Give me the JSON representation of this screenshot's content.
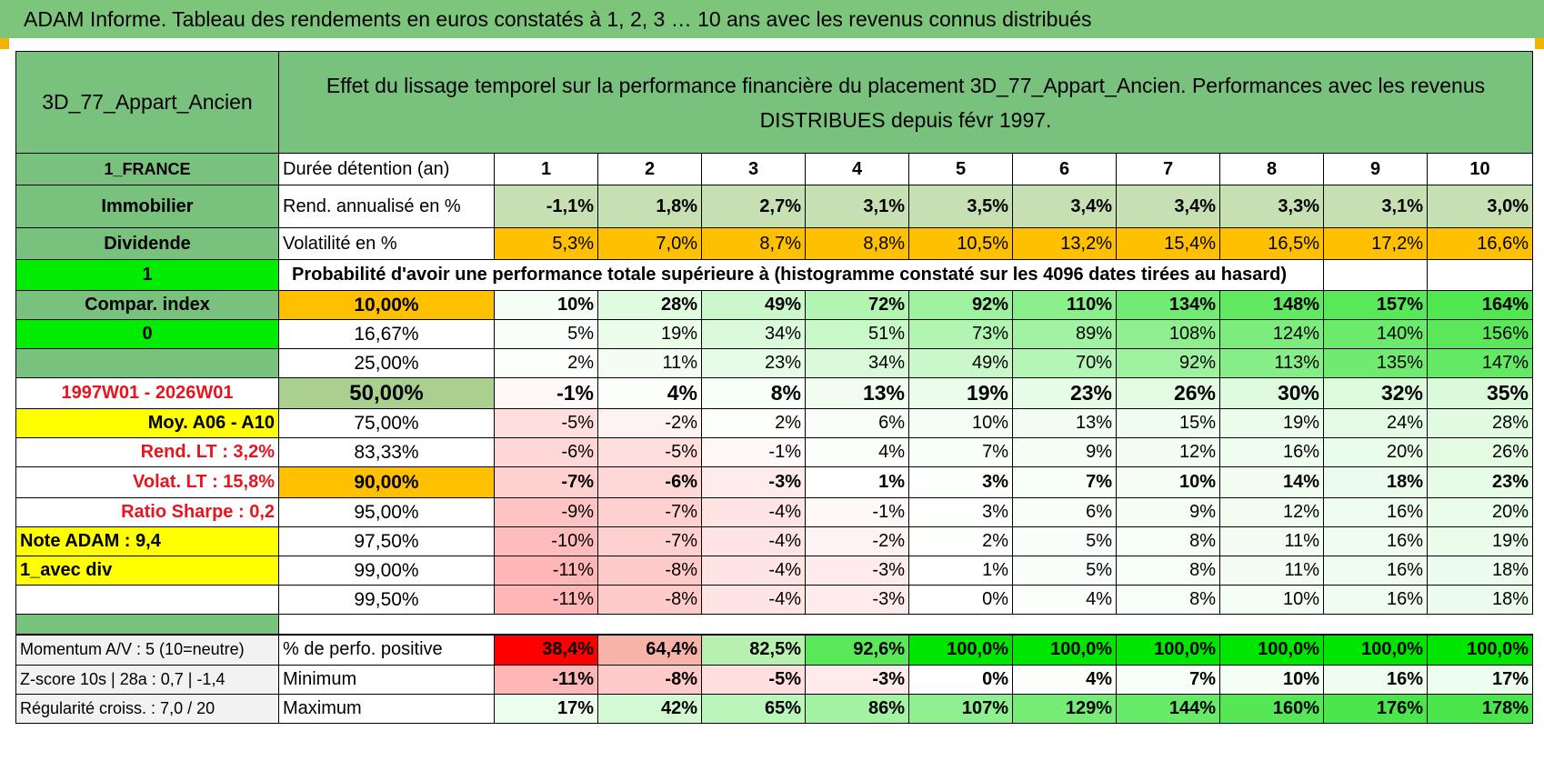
{
  "banner": "ADAM Informe. Tableau des rendements en euros constatés à 1, 2, 3 … 10 ans avec les revenus connus distribués",
  "asset": "3D_77_Appart_Ancien",
  "description": "Effet du lissage temporel sur la performance financière du placement 3D_77_Appart_Ancien. Performances avec les revenus DISTRIBUES depuis févr 1997.",
  "left": {
    "country": "1_FRANCE",
    "category": "Immobilier",
    "type": "Dividende",
    "flag1": "1",
    "compar": "Compar. index",
    "flag0": "0",
    "period": "1997W01 - 2026W01",
    "moy": "Moy. A06 - A10",
    "rend_lt": "Rend. LT :   3,2%",
    "volat_lt": "Volat. LT :   15,8%",
    "sharpe": "Ratio Sharpe :    0,2",
    "note": "Note ADAM : 9,4",
    "avec_div": "1_avec div",
    "momentum": "Momentum A/V : 5 (10=neutre)",
    "zscore": "Z-score 10s | 28a : 0,7 | -1,4",
    "regularite": "Régularité croiss. : 7,0 / 20"
  },
  "table": {
    "duration_label": "Durée détention (an)",
    "years": [
      "1",
      "2",
      "3",
      "4",
      "5",
      "6",
      "7",
      "8",
      "9",
      "10"
    ],
    "rend_label": "Rend. annualisé en %",
    "rend": [
      "-1,1%",
      "1,8%",
      "2,7%",
      "3,1%",
      "3,5%",
      "3,4%",
      "3,4%",
      "3,3%",
      "3,1%",
      "3,0%"
    ],
    "vol_label": "Volatilité en %",
    "vol": [
      "5,3%",
      "7,0%",
      "8,7%",
      "8,8%",
      "10,5%",
      "13,2%",
      "15,4%",
      "16,5%",
      "17,2%",
      "16,6%"
    ],
    "prob_title": "Probabilité d'avoir une performance totale supérieure à (histogramme constaté sur les 4096 dates tirées au hasard)",
    "quantiles": [
      {
        "p": "10,00%",
        "v": [
          "10%",
          "28%",
          "49%",
          "72%",
          "92%",
          "110%",
          "134%",
          "148%",
          "157%",
          "164%"
        ]
      },
      {
        "p": "16,67%",
        "v": [
          "5%",
          "19%",
          "34%",
          "51%",
          "73%",
          "89%",
          "108%",
          "124%",
          "140%",
          "156%"
        ]
      },
      {
        "p": "25,00%",
        "v": [
          "2%",
          "11%",
          "23%",
          "34%",
          "49%",
          "70%",
          "92%",
          "113%",
          "135%",
          "147%"
        ]
      },
      {
        "p": "50,00%",
        "v": [
          "-1%",
          "4%",
          "8%",
          "13%",
          "19%",
          "23%",
          "26%",
          "30%",
          "32%",
          "35%"
        ]
      },
      {
        "p": "75,00%",
        "v": [
          "-5%",
          "-2%",
          "2%",
          "6%",
          "10%",
          "13%",
          "15%",
          "19%",
          "24%",
          "28%"
        ]
      },
      {
        "p": "83,33%",
        "v": [
          "-6%",
          "-5%",
          "-1%",
          "4%",
          "7%",
          "9%",
          "12%",
          "16%",
          "20%",
          "26%"
        ]
      },
      {
        "p": "90,00%",
        "v": [
          "-7%",
          "-6%",
          "-3%",
          "1%",
          "3%",
          "7%",
          "10%",
          "14%",
          "18%",
          "23%"
        ]
      },
      {
        "p": "95,00%",
        "v": [
          "-9%",
          "-7%",
          "-4%",
          "-1%",
          "3%",
          "6%",
          "9%",
          "12%",
          "16%",
          "20%"
        ]
      },
      {
        "p": "97,50%",
        "v": [
          "-10%",
          "-7%",
          "-4%",
          "-2%",
          "2%",
          "5%",
          "8%",
          "11%",
          "16%",
          "19%"
        ]
      },
      {
        "p": "99,00%",
        "v": [
          "-11%",
          "-8%",
          "-4%",
          "-3%",
          "1%",
          "5%",
          "8%",
          "11%",
          "16%",
          "18%"
        ]
      },
      {
        "p": "99,50%",
        "v": [
          "-11%",
          "-8%",
          "-4%",
          "-3%",
          "0%",
          "4%",
          "8%",
          "10%",
          "16%",
          "18%"
        ]
      }
    ],
    "pos_label": "% de perfo. positive",
    "pos": [
      "38,4%",
      "64,4%",
      "82,5%",
      "92,6%",
      "100,0%",
      "100,0%",
      "100,0%",
      "100,0%",
      "100,0%",
      "100,0%"
    ],
    "min_label": "Minimum",
    "min": [
      "-11%",
      "-8%",
      "-5%",
      "-3%",
      "0%",
      "4%",
      "7%",
      "10%",
      "16%",
      "17%"
    ],
    "max_label": "Maximum",
    "max": [
      "17%",
      "42%",
      "65%",
      "86%",
      "107%",
      "129%",
      "144%",
      "160%",
      "176%",
      "178%"
    ]
  }
}
